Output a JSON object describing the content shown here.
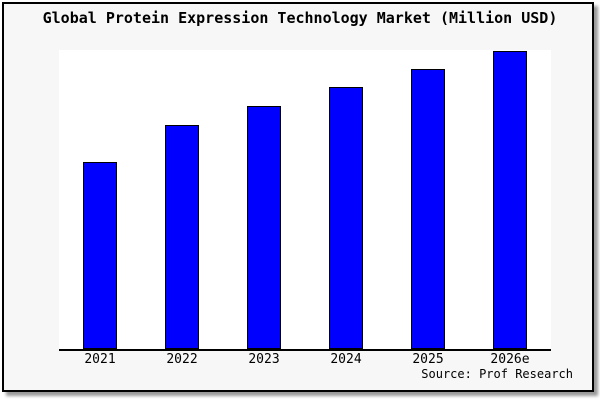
{
  "chart_data": {
    "type": "bar",
    "title": "Global Protein Expression Technology Market (Million USD)",
    "categories": [
      "2021",
      "2022",
      "2023",
      "2024",
      "2025",
      "2026e"
    ],
    "values": [
      62.5,
      74.9,
      81.3,
      87.6,
      93.6,
      99.7
    ],
    "value_note": "no y-axis ticks, labels or gridlines are shown; values are estimated bar heights as percent of plot height",
    "xlabel": "",
    "ylabel": "",
    "legend": "none",
    "gridlines": false,
    "bar_fill_color": "#0000ff",
    "bar_border_color": "#000000",
    "plot_background_color": "#ffffff",
    "figure_background_color": "#f7f7f7",
    "frame_border_color": "#000000",
    "source_note": "Source: Prof Research"
  }
}
